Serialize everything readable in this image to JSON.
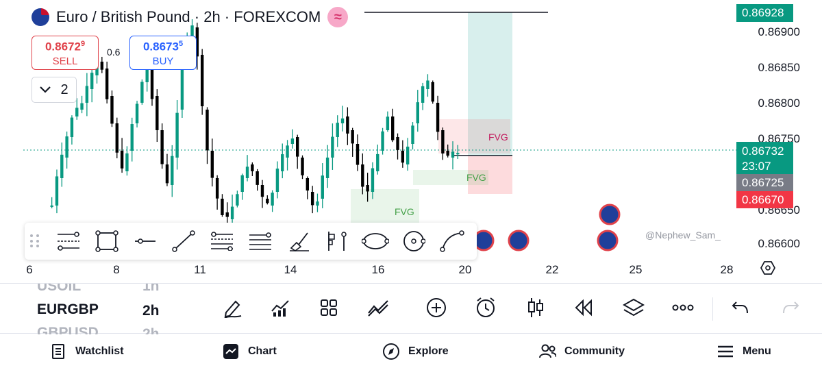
{
  "header": {
    "title": "Euro / British Pound · 2h · FOREXCOM",
    "indicator_badge": "≈",
    "flag_icon": "eur-gbp-flag-icon"
  },
  "trade": {
    "sell_price_main": "0.8672",
    "sell_price_sup": "9",
    "sell_label": "SELL",
    "spread": "0.6",
    "buy_price_main": "0.8673",
    "buy_price_sup": "5",
    "buy_label": "BUY",
    "collapse_count": "2"
  },
  "price_scale": {
    "labels": [
      "0.86900",
      "0.86850",
      "0.86800",
      "0.86750",
      "0.86650",
      "0.86600"
    ],
    "tag_target": "0.86928",
    "tag_current": "0.86732",
    "tag_countdown": "23:07",
    "tag_entry": "0.86725",
    "tag_stop": "0.86670"
  },
  "chart": {
    "fvg_labels": [
      "FVG",
      "FVG",
      "FVG"
    ],
    "watermark": "@Nephew_Sam_"
  },
  "time_axis": {
    "labels": [
      "6",
      "8",
      "11",
      "14",
      "16",
      "20",
      "22",
      "25",
      "28"
    ]
  },
  "drawing_toolbar": {
    "tools": [
      "pitchfork-tool-icon",
      "rectangle-tool-icon",
      "horizontal-line-tool-icon",
      "trend-line-tool-icon",
      "fib-retracement-tool-icon",
      "parallel-channel-tool-icon",
      "brush-tool-icon",
      "long-position-tool-icon",
      "ellipse-tool-icon",
      "circle-tool-icon",
      "curve-tool-icon"
    ]
  },
  "symbol_picker": {
    "prev_symbol": "USOIL",
    "current_symbol": "EURGBP",
    "next_symbol": "GBPUSD",
    "prev_interval": "1h",
    "current_interval": "2h",
    "next_interval": "2h"
  },
  "nav": {
    "watchlist": "Watchlist",
    "chart": "Chart",
    "explore": "Explore",
    "community": "Community",
    "menu": "Menu"
  },
  "colors": {
    "up": "#089981",
    "down": "#000000",
    "sell": "#e0424a",
    "buy": "#2962ff",
    "target_zone": "#26a69a",
    "stop_zone": "#f23645"
  }
}
